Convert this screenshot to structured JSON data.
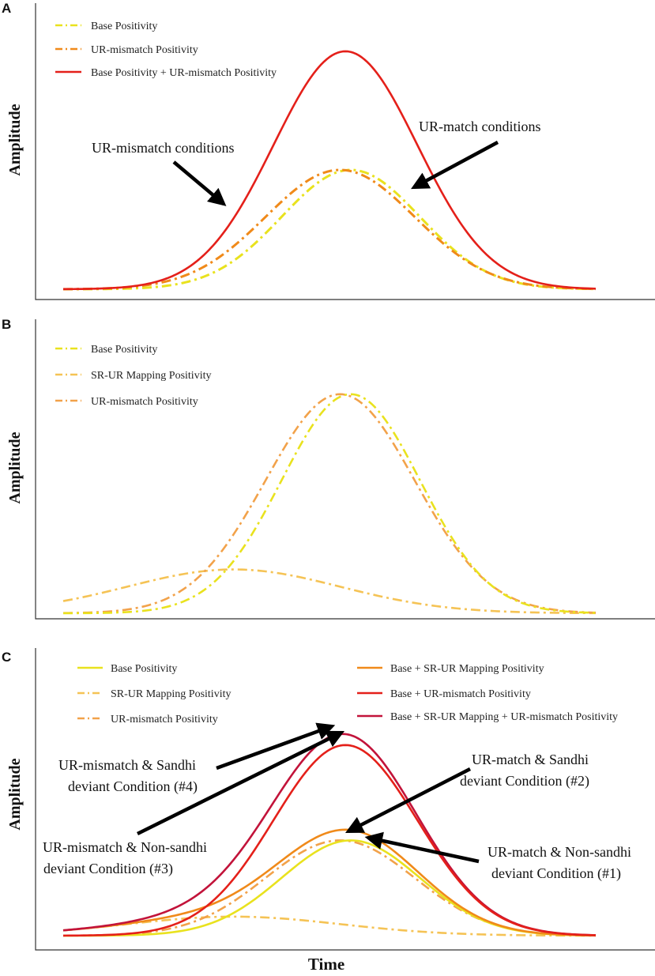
{
  "colors": {
    "yellow": "#e9e21e",
    "light_orange": "#f5c355",
    "orange": "#f08a1a",
    "red": "#e4201a",
    "crimson": "#c2133a",
    "arrow": "#000000",
    "axis": "#333333"
  },
  "chart_data": [
    {
      "panel": "A",
      "type": "line",
      "xlabel": "",
      "ylabel": "Amplitude",
      "xlim": [
        0,
        100
      ],
      "ylim": [
        0,
        10
      ],
      "series": [
        {
          "name": "Base Positivity",
          "color_key": "yellow",
          "style": "dashdot",
          "curve": [
            {
              "amp": 5.0,
              "mu": 54,
              "sigma": 13.0
            }
          ]
        },
        {
          "name": "UR-mismatch Positivity",
          "color_key": "orange",
          "style": "dashdot",
          "curve": [
            {
              "amp": 5.0,
              "mu": 52,
              "sigma": 14.0
            }
          ]
        },
        {
          "name": "Base Positivity + UR-mismatch Positivity",
          "color_key": "red",
          "style": "solid",
          "curve": [
            {
              "amp": 9.97,
              "mu": 53,
              "sigma": 13.5
            }
          ]
        }
      ],
      "annotations": [
        {
          "text": "UR-mismatch conditions",
          "lines": [
            "UR-mismatch conditions"
          ],
          "tail": [
            12,
            6.2
          ],
          "head": [
            30.5,
            3.6
          ]
        },
        {
          "text": "UR-match conditions",
          "lines": [
            "UR-match conditions"
          ],
          "tail": [
            82,
            6.0
          ],
          "head": [
            65.5,
            4.3
          ]
        }
      ]
    },
    {
      "panel": "B",
      "type": "line",
      "xlabel": "",
      "ylabel": "Amplitude",
      "xlim": [
        0,
        100
      ],
      "ylim": [
        0,
        10
      ],
      "series": [
        {
          "name": "Base Positivity",
          "color_key": "yellow",
          "style": "dashdot",
          "curve": [
            {
              "amp": 9.0,
              "mu": 54,
              "sigma": 13.0
            }
          ]
        },
        {
          "name": "SR-UR Mapping Positivity",
          "color_key": "light_orange",
          "style": "dashdot",
          "curve": [
            {
              "amp": 1.8,
              "mu": 32,
              "sigma": 20.0
            }
          ]
        },
        {
          "name": "UR-mismatch Positivity",
          "color_key": "light_orange",
          "style": "dashdot",
          "curve": [
            {
              "amp": 9.0,
              "mu": 52,
              "sigma": 14.0
            }
          ]
        }
      ],
      "annotations": []
    },
    {
      "panel": "C",
      "type": "line",
      "xlabel": "Time",
      "ylabel": "Amplitude",
      "xlim": [
        0,
        100
      ],
      "ylim": [
        0,
        10
      ],
      "series": [
        {
          "name": "Base Positivity",
          "color_key": "yellow",
          "style": "solid",
          "curve": [
            {
              "amp": 4.5,
              "mu": 54,
              "sigma": 13.0
            }
          ]
        },
        {
          "name": "SR-UR Mapping Positivity",
          "color_key": "light_orange",
          "style": "dashdot",
          "curve": [
            {
              "amp": 0.9,
              "mu": 32,
              "sigma": 20.0
            }
          ]
        },
        {
          "name": "UR-mismatch Positivity",
          "color_key": "light_orange",
          "style": "dashdot",
          "curve": [
            {
              "amp": 4.5,
              "mu": 52,
              "sigma": 14.0
            }
          ]
        },
        {
          "name": "Base + SR-UR Mapping Positivity",
          "color_key": "orange",
          "style": "solid",
          "curve": [
            {
              "amp": 4.5,
              "mu": 54,
              "sigma": 13.0
            },
            {
              "amp": 0.9,
              "mu": 32,
              "sigma": 20.0
            }
          ]
        },
        {
          "name": "Base + UR-mismatch Positivity",
          "color_key": "red",
          "style": "solid",
          "curve": [
            {
              "amp": 9.0,
              "mu": 53,
              "sigma": 13.5
            }
          ]
        },
        {
          "name": "Base + SR-UR Mapping  + UR-mismatch Positivity",
          "color_key": "crimson",
          "style": "solid",
          "curve": [
            {
              "amp": 9.0,
              "mu": 53,
              "sigma": 13.5
            },
            {
              "amp": 0.9,
              "mu": 32,
              "sigma": 20.0
            }
          ]
        }
      ],
      "annotations": [
        {
          "text": "UR-mismatch & Sandhi deviant Condition (#4)",
          "lines": [
            "UR-mismatch & Sandhi",
            "deviant Condition (#4)"
          ],
          "tail": [
            28,
            7.5
          ],
          "head": [
            51,
            8.9
          ]
        },
        {
          "text": "UR-match & Sandhi deviant Condition (#2)",
          "lines": [
            "UR-match & Sandhi",
            "deviant Condition (#2)"
          ],
          "tail": [
            80,
            6.9
          ],
          "head": [
            54,
            4.6
          ]
        },
        {
          "text": "UR-mismatch & Non-sandhi deviant Condition (#3)",
          "lines": [
            "UR-mismatch & Non-sandhi",
            "deviant Condition (#3)"
          ],
          "tail": [
            14,
            4.6
          ],
          "head": [
            53,
            8.7
          ]
        },
        {
          "text": "UR-match & Non-sandhi deviant Condition (#1)",
          "lines": [
            "UR-match & Non-sandhi",
            "deviant Condition (#1)"
          ],
          "tail": [
            79,
            2.9
          ],
          "head": [
            57,
            4.0
          ]
        }
      ]
    }
  ]
}
